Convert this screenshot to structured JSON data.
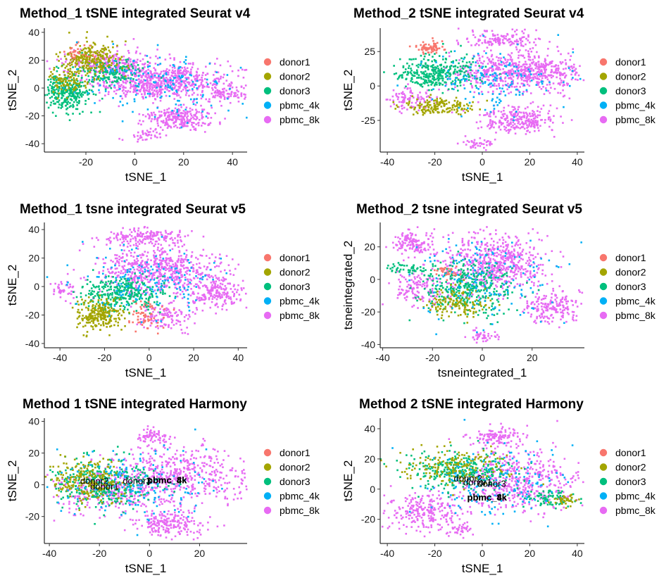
{
  "colors": {
    "donor1": "#F8766D",
    "donor2": "#A3A500",
    "donor3": "#00BF7D",
    "pbmc_4k": "#00B0F6",
    "pbmc_8k": "#E76BF3"
  },
  "chart_data": [
    {
      "type": "scatter",
      "title": "Method_1 tSNE integrated Seurat v4",
      "xlabel": "tSNE_1",
      "ylabel": "tSNE_2",
      "xlim": [
        -37,
        46
      ],
      "ylim": [
        -46,
        43
      ],
      "xticks": [
        -20,
        0,
        20,
        40
      ],
      "yticks": [
        40,
        20,
        0,
        -20,
        -40
      ],
      "legend": [
        "donor1",
        "donor2",
        "donor3",
        "pbmc_4k",
        "pbmc_8k"
      ],
      "legend_position": "right",
      "annotations": [],
      "clusters": [
        {
          "group": "pbmc_8k",
          "cx": 10,
          "cy": 5,
          "sx": 14,
          "sy": 6,
          "n": 700
        },
        {
          "group": "pbmc_8k",
          "cx": 18,
          "cy": -22,
          "sx": 7,
          "sy": 4,
          "n": 260
        },
        {
          "group": "pbmc_8k",
          "cx": -10,
          "cy": 18,
          "sx": 10,
          "sy": 5,
          "n": 220
        },
        {
          "group": "pbmc_8k",
          "cx": 5,
          "cy": -34,
          "sx": 3,
          "sy": 2,
          "n": 40
        },
        {
          "group": "pbmc_8k",
          "cx": 38,
          "cy": -5,
          "sx": 4,
          "sy": 3,
          "n": 80
        },
        {
          "group": "donor3",
          "cx": -28,
          "cy": -3,
          "sx": 5,
          "sy": 7,
          "n": 300
        },
        {
          "group": "donor3",
          "cx": -10,
          "cy": 10,
          "sx": 6,
          "sy": 5,
          "n": 150
        },
        {
          "group": "donor2",
          "cx": -18,
          "cy": 20,
          "sx": 6,
          "sy": 6,
          "n": 260
        },
        {
          "group": "donor2",
          "cx": -28,
          "cy": 5,
          "sx": 4,
          "sy": 5,
          "n": 90
        },
        {
          "group": "donor1",
          "cx": -22,
          "cy": 25,
          "sx": 3,
          "sy": 3,
          "n": 30
        },
        {
          "group": "pbmc_4k",
          "cx": 10,
          "cy": 3,
          "sx": 15,
          "sy": 12,
          "n": 160
        }
      ]
    },
    {
      "type": "scatter",
      "title": "Method_2 tSNE integrated Seurat v4",
      "xlabel": "tSNE_1",
      "ylabel": "tSNE_2",
      "xlim": [
        -43,
        43
      ],
      "ylim": [
        -48,
        42
      ],
      "xticks": [
        -40,
        -20,
        0,
        20,
        40
      ],
      "yticks": [
        25,
        0,
        -25
      ],
      "legend": [
        "donor1",
        "donor2",
        "donor3",
        "pbmc_4k",
        "pbmc_8k"
      ],
      "legend_position": "right",
      "annotations": [],
      "clusters": [
        {
          "group": "pbmc_8k",
          "cx": 15,
          "cy": 10,
          "sx": 14,
          "sy": 7,
          "n": 650
        },
        {
          "group": "pbmc_8k",
          "cx": 15,
          "cy": -25,
          "sx": 8,
          "sy": 5,
          "n": 260
        },
        {
          "group": "pbmc_8k",
          "cx": 8,
          "cy": 34,
          "sx": 8,
          "sy": 3,
          "n": 140
        },
        {
          "group": "pbmc_8k",
          "cx": -2,
          "cy": -42,
          "sx": 4,
          "sy": 2,
          "n": 40
        },
        {
          "group": "pbmc_8k",
          "cx": -30,
          "cy": -10,
          "sx": 5,
          "sy": 4,
          "n": 90
        },
        {
          "group": "donor3",
          "cx": -20,
          "cy": 10,
          "sx": 9,
          "sy": 6,
          "n": 320
        },
        {
          "group": "donor2",
          "cx": -18,
          "cy": -15,
          "sx": 7,
          "sy": 3,
          "n": 160
        },
        {
          "group": "donor1",
          "cx": -22,
          "cy": 28,
          "sx": 3,
          "sy": 2,
          "n": 70
        },
        {
          "group": "pbmc_4k",
          "cx": 5,
          "cy": 5,
          "sx": 15,
          "sy": 12,
          "n": 150
        }
      ]
    },
    {
      "type": "scatter",
      "title": "Method_1 tsne integrated Seurat v5",
      "xlabel": "tSNE_1",
      "ylabel": "tSNE_2",
      "xlim": [
        -47,
        44
      ],
      "ylim": [
        -43,
        45
      ],
      "xticks": [
        -40,
        -20,
        0,
        20,
        40
      ],
      "yticks": [
        40,
        20,
        0,
        -20,
        -40
      ],
      "legend": [
        "donor1",
        "donor2",
        "donor3",
        "pbmc_4k",
        "pbmc_8k"
      ],
      "legend_position": "right",
      "annotations": [],
      "clusters": [
        {
          "group": "pbmc_8k",
          "cx": 5,
          "cy": 12,
          "sx": 14,
          "sy": 8,
          "n": 600
        },
        {
          "group": "pbmc_8k",
          "cx": -2,
          "cy": 35,
          "sx": 9,
          "sy": 3,
          "n": 170
        },
        {
          "group": "pbmc_8k",
          "cx": 30,
          "cy": -5,
          "sx": 7,
          "sy": 5,
          "n": 200
        },
        {
          "group": "pbmc_8k",
          "cx": 8,
          "cy": -22,
          "sx": 6,
          "sy": 5,
          "n": 120
        },
        {
          "group": "pbmc_8k",
          "cx": -38,
          "cy": -3,
          "sx": 3,
          "sy": 3,
          "n": 40
        },
        {
          "group": "donor3",
          "cx": -12,
          "cy": -5,
          "sx": 9,
          "sy": 6,
          "n": 330
        },
        {
          "group": "donor2",
          "cx": -22,
          "cy": -20,
          "sx": 5,
          "sy": 5,
          "n": 240
        },
        {
          "group": "donor1",
          "cx": -2,
          "cy": -20,
          "sx": 4,
          "sy": 5,
          "n": 60
        },
        {
          "group": "pbmc_4k",
          "cx": 2,
          "cy": 5,
          "sx": 15,
          "sy": 12,
          "n": 150
        }
      ]
    },
    {
      "type": "scatter",
      "title": "Method_2 tsne integrated Seurat v5",
      "xlabel": "tsneintegrated_1",
      "ylabel": "tsneintegrated_2",
      "xlim": [
        -41,
        41
      ],
      "ylim": [
        -42,
        35
      ],
      "xticks": [
        -40,
        -20,
        0,
        20
      ],
      "yticks": [
        20,
        0,
        -20,
        -40
      ],
      "legend": [
        "donor1",
        "donor2",
        "donor3",
        "pbmc_4k",
        "pbmc_8k"
      ],
      "legend_position": "right",
      "annotations": [],
      "clusters": [
        {
          "group": "pbmc_8k",
          "cx": 5,
          "cy": 10,
          "sx": 11,
          "sy": 9,
          "n": 600
        },
        {
          "group": "pbmc_8k",
          "cx": 27,
          "cy": -17,
          "sx": 6,
          "sy": 5,
          "n": 180
        },
        {
          "group": "pbmc_8k",
          "cx": -28,
          "cy": 22,
          "sx": 5,
          "sy": 4,
          "n": 130
        },
        {
          "group": "pbmc_8k",
          "cx": -25,
          "cy": -5,
          "sx": 5,
          "sy": 6,
          "n": 140
        },
        {
          "group": "pbmc_8k",
          "cx": 0,
          "cy": -35,
          "sx": 3,
          "sy": 2,
          "n": 40
        },
        {
          "group": "donor3",
          "cx": -5,
          "cy": -5,
          "sx": 9,
          "sy": 8,
          "n": 360
        },
        {
          "group": "donor2",
          "cx": -10,
          "cy": -15,
          "sx": 6,
          "sy": 5,
          "n": 140
        },
        {
          "group": "donor3",
          "cx": -30,
          "cy": 6,
          "sx": 5,
          "sy": 2,
          "n": 50
        },
        {
          "group": "donor1",
          "cx": -15,
          "cy": 5,
          "sx": 3,
          "sy": 2,
          "n": 30
        },
        {
          "group": "pbmc_4k",
          "cx": 0,
          "cy": 0,
          "sx": 14,
          "sy": 14,
          "n": 150
        }
      ]
    },
    {
      "type": "scatter",
      "title": "Method 1 tSNE integrated Harmony",
      "xlabel": "tSNE_1",
      "ylabel": "tSNE_2",
      "xlim": [
        -42,
        39
      ],
      "ylim": [
        -37,
        42
      ],
      "xticks": [
        -40,
        -20,
        0,
        20
      ],
      "yticks": [
        40,
        20,
        0,
        -20
      ],
      "legend": [
        "donor1",
        "donor2",
        "donor3",
        "pbmc_4k",
        "pbmc_8k"
      ],
      "legend_position": "right",
      "annotations": [
        {
          "text": "donor2",
          "x": -22,
          "y": 0.5,
          "bold": false
        },
        {
          "text": "donor1",
          "x": -18,
          "y": -3,
          "bold": false
        },
        {
          "text": "donor3",
          "x": -5,
          "y": 0.5,
          "bold": false
        },
        {
          "text": "pbmc_4k",
          "x": 7,
          "y": 1,
          "bold": true
        },
        {
          "text": "pbmc_8k",
          "x": 7,
          "y": 1,
          "bold": true
        }
      ],
      "clusters": [
        {
          "group": "pbmc_8k",
          "cx": 10,
          "cy": 5,
          "sx": 14,
          "sy": 9,
          "n": 560
        },
        {
          "group": "pbmc_8k",
          "cx": 8,
          "cy": -25,
          "sx": 7,
          "sy": 4,
          "n": 200
        },
        {
          "group": "pbmc_8k",
          "cx": 2,
          "cy": 30,
          "sx": 3,
          "sy": 3,
          "n": 70
        },
        {
          "group": "pbmc_8k",
          "cx": -20,
          "cy": -5,
          "sx": 10,
          "sy": 7,
          "n": 220
        },
        {
          "group": "donor3",
          "cx": -18,
          "cy": 0,
          "sx": 10,
          "sy": 8,
          "n": 330
        },
        {
          "group": "donor2",
          "cx": -25,
          "cy": 2,
          "sx": 8,
          "sy": 7,
          "n": 230
        },
        {
          "group": "pbmc_4k",
          "cx": -5,
          "cy": 0,
          "sx": 16,
          "sy": 10,
          "n": 160
        }
      ]
    },
    {
      "type": "scatter",
      "title": "Method 2 tSNE integrated Harmony",
      "xlabel": "tSNE_1",
      "ylabel": "tSNE_2",
      "xlim": [
        -43,
        43
      ],
      "ylim": [
        -36,
        47
      ],
      "xticks": [
        -40,
        -20,
        0,
        20,
        40
      ],
      "yticks": [
        40,
        20,
        0,
        -20
      ],
      "legend": [
        "donor1",
        "donor2",
        "donor3",
        "pbmc_4k",
        "pbmc_8k"
      ],
      "legend_position": "right",
      "annotations": [
        {
          "text": "donor2",
          "x": -6,
          "y": 5,
          "bold": false
        },
        {
          "text": "donor1",
          "x": -2,
          "y": 2.5,
          "bold": false
        },
        {
          "text": "donor3",
          "x": 4,
          "y": 1.5,
          "bold": false
        },
        {
          "text": "pbmc_4k",
          "x": 2,
          "y": -7.5,
          "bold": true
        },
        {
          "text": "pbmc_8k",
          "x": 2,
          "y": -7.5,
          "bold": true
        }
      ],
      "clusters": [
        {
          "group": "pbmc_8k",
          "cx": 15,
          "cy": 5,
          "sx": 13,
          "sy": 10,
          "n": 500
        },
        {
          "group": "pbmc_8k",
          "cx": -25,
          "cy": -15,
          "sx": 8,
          "sy": 6,
          "n": 240
        },
        {
          "group": "pbmc_8k",
          "cx": 5,
          "cy": 35,
          "sx": 6,
          "sy": 3,
          "n": 120
        },
        {
          "group": "pbmc_8k",
          "cx": -10,
          "cy": -27,
          "sx": 3,
          "sy": 3,
          "n": 40
        },
        {
          "group": "donor3",
          "cx": -10,
          "cy": 12,
          "sx": 12,
          "sy": 6,
          "n": 300
        },
        {
          "group": "donor2",
          "cx": -10,
          "cy": 15,
          "sx": 12,
          "sy": 6,
          "n": 180
        },
        {
          "group": "donor3",
          "cx": 28,
          "cy": -6,
          "sx": 5,
          "sy": 3,
          "n": 80
        },
        {
          "group": "donor2",
          "cx": 35,
          "cy": -7,
          "sx": 3,
          "sy": 2,
          "n": 40
        },
        {
          "group": "pbmc_4k",
          "cx": 5,
          "cy": 5,
          "sx": 16,
          "sy": 12,
          "n": 160
        }
      ]
    }
  ]
}
